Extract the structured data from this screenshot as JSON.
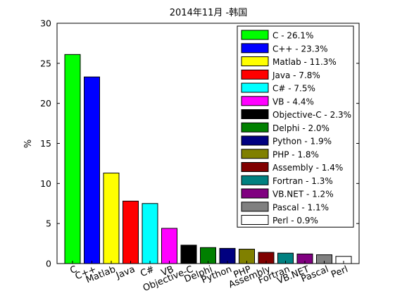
{
  "chart_data": {
    "type": "bar",
    "title": "2014年11月 -韩国",
    "xlabel": "",
    "ylabel": "%",
    "ylim": [
      0,
      30
    ],
    "yticks": [
      0,
      5,
      10,
      15,
      20,
      25,
      30
    ],
    "grid": false,
    "legend_position": "top-right",
    "categories": [
      "C",
      "C++",
      "Matlab",
      "Java",
      "C#",
      "VB",
      "Objective-C",
      "Delphi",
      "Python",
      "PHP",
      "Assembly",
      "Fortran",
      "VB.NET",
      "Pascal",
      "Perl"
    ],
    "values": [
      26.1,
      23.3,
      11.3,
      7.8,
      7.5,
      4.4,
      2.3,
      2.0,
      1.9,
      1.8,
      1.4,
      1.3,
      1.2,
      1.1,
      0.9
    ],
    "colors": [
      "#00ff00",
      "#0000ff",
      "#ffff00",
      "#ff0000",
      "#00ffff",
      "#ff00ff",
      "#000000",
      "#008000",
      "#000080",
      "#808000",
      "#800000",
      "#008080",
      "#800080",
      "#808080",
      "#ffffff"
    ],
    "legend": [
      "C - 26.1%",
      "C++ - 23.3%",
      "Matlab - 11.3%",
      "Java - 7.8%",
      "C# - 7.5%",
      "VB - 4.4%",
      "Objective-C - 2.3%",
      "Delphi - 2.0%",
      "Python - 1.9%",
      "PHP - 1.8%",
      "Assembly - 1.4%",
      "Fortran - 1.3%",
      "VB.NET - 1.2%",
      "Pascal - 1.1%",
      "Perl - 0.9%"
    ]
  }
}
